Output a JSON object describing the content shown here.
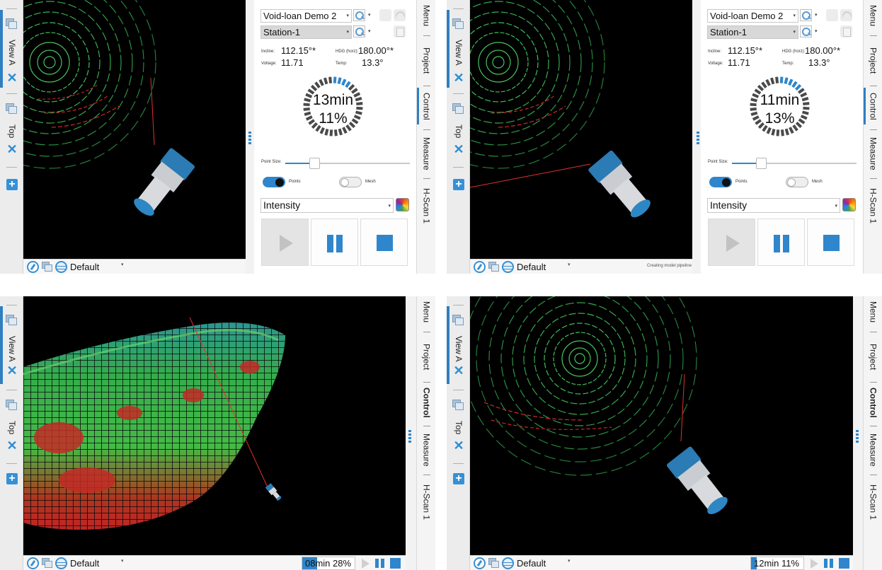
{
  "left_tabs": {
    "view_a": "View A",
    "top": "Top"
  },
  "right_tabs": [
    "Menu",
    "Project",
    "Control",
    "Measure",
    "H-Scan 1"
  ],
  "bottom_bar": {
    "view_preset": "Default"
  },
  "panel_top_left": {
    "project_select": "Void-loan Demo 2",
    "station_select": "Station-1",
    "sensors": {
      "incline_label": "Incline:",
      "incline_value": "112.15°*",
      "hdg_label": "HDG (horz):",
      "hdg_value": "180.00°*",
      "voltage_label": "Voltage:",
      "voltage_value": "11.71",
      "temp_label": "Temp:",
      "temp_value": "13.3°"
    },
    "scan_progress": {
      "time_remaining": "13min",
      "percent": "11%",
      "fraction": 0.11
    },
    "point_size_label": "Point Size:",
    "point_size_level": 0.2,
    "points_label": "Points",
    "points_on": true,
    "mesh_label": "Mesh",
    "mesh_on": false,
    "color_mode": "Intensity"
  },
  "panel_top_right": {
    "project_select": "Void-loan Demo 2",
    "station_select": "Station-1",
    "sensors": {
      "incline_label": "Incline:",
      "incline_value": "112.15°*",
      "hdg_label": "HDG (horz):",
      "hdg_value": "180.00°*",
      "voltage_label": "Voltage:",
      "voltage_value": "11.71",
      "temp_label": "Temp:",
      "temp_value": "13.3°"
    },
    "scan_progress": {
      "time_remaining": "11min",
      "percent": "13%",
      "fraction": 0.13
    },
    "point_size_label": "Point Size:",
    "point_size_level": 0.2,
    "points_label": "Points",
    "points_on": true,
    "mesh_label": "Mesh",
    "mesh_on": false,
    "color_mode": "Intensity",
    "status_text": "Creating model pipeline"
  },
  "bottom_left_progress": {
    "text": "08min 28%",
    "fraction": 0.28
  },
  "bottom_right_progress": {
    "text": "12min 11%",
    "fraction": 0.11
  },
  "colors": {
    "accent": "#2f86cc",
    "scan_green": "#3fbf5a",
    "scan_red": "#d42a2a",
    "viewport_bg": "#000000"
  }
}
